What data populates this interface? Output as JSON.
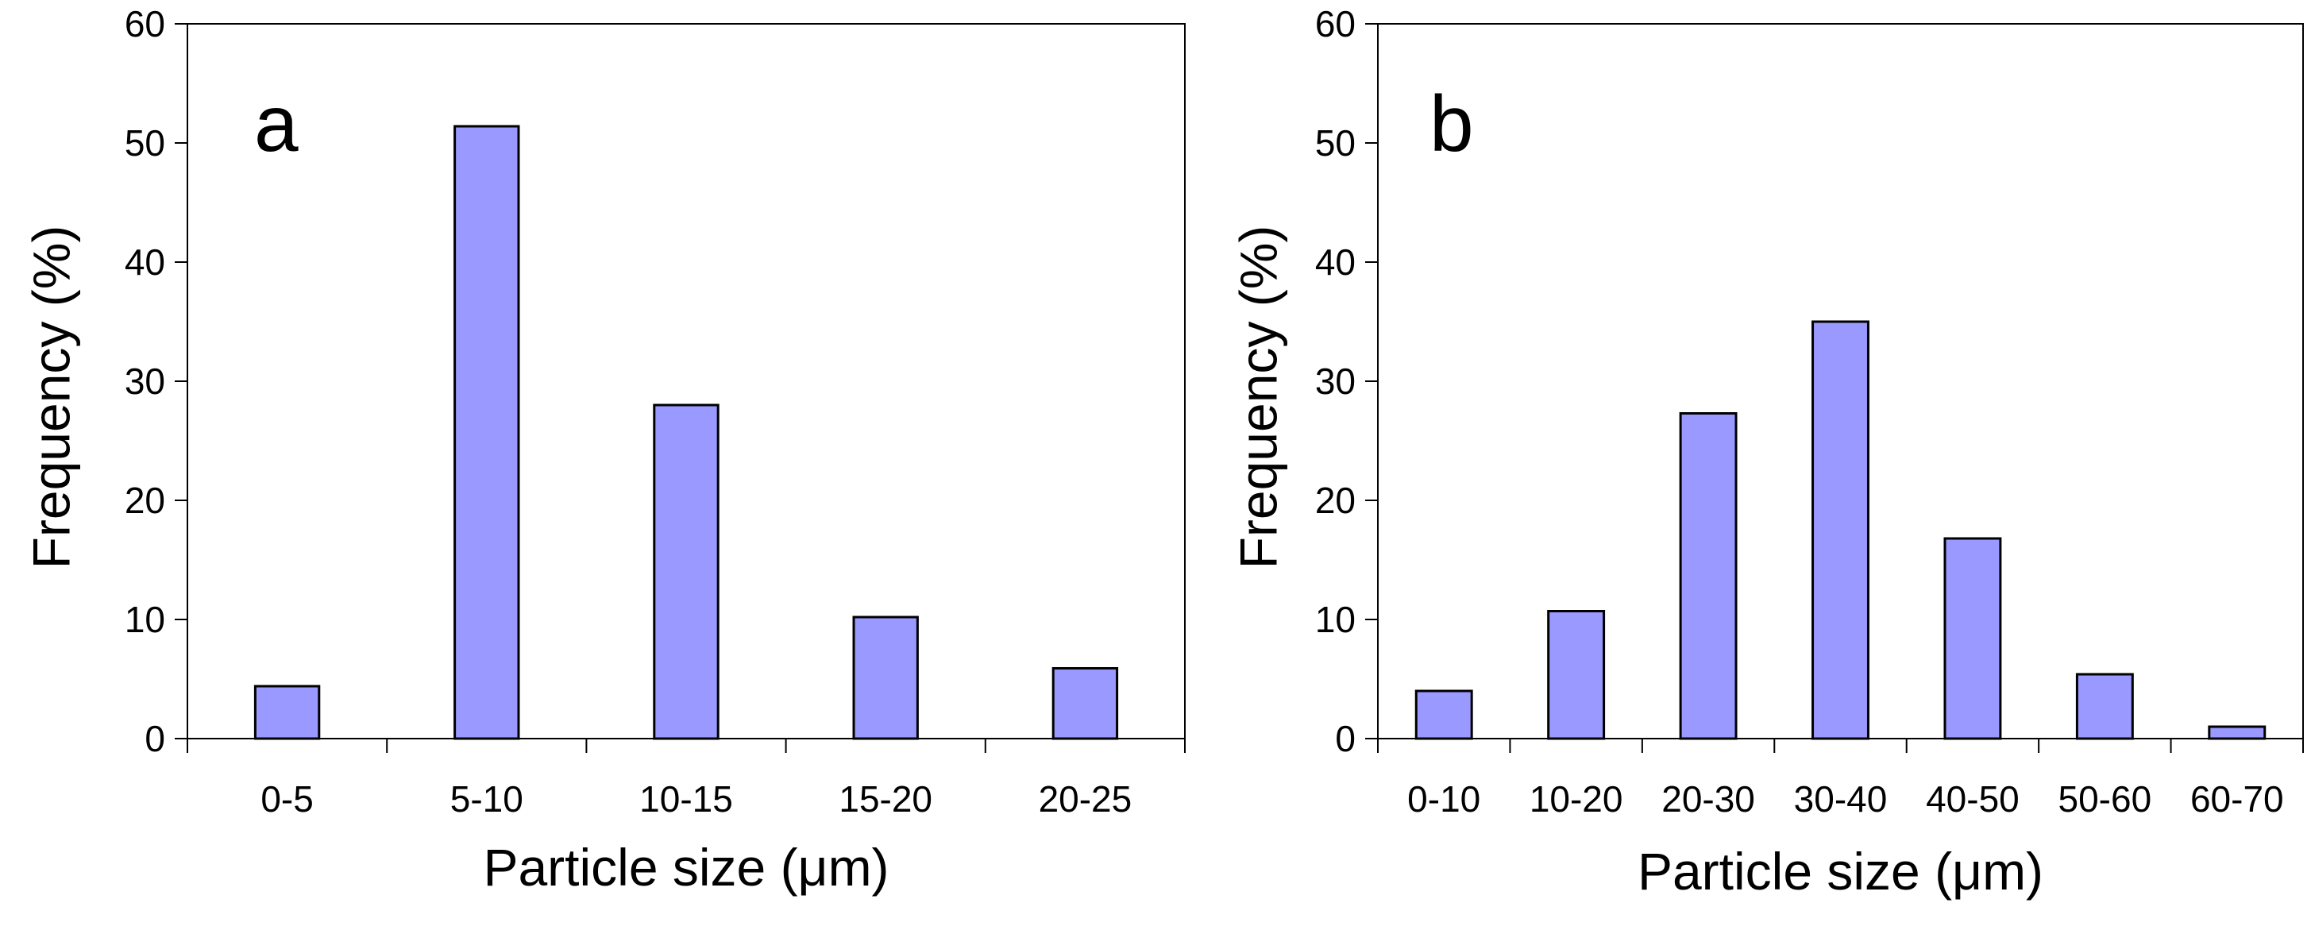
{
  "chart_data": [
    {
      "type": "bar",
      "panel_label": "a",
      "categories": [
        "0-5",
        "5-10",
        "10-15",
        "15-20",
        "20-25"
      ],
      "values": [
        4.4,
        51.4,
        28.0,
        10.2,
        5.9
      ],
      "title": "",
      "xlabel": "Particle size (μm)",
      "ylabel": "Frequency (%)",
      "ylim": [
        0,
        60
      ],
      "yticks": [
        0,
        10,
        20,
        30,
        40,
        50,
        60
      ],
      "bar_color": "#9999ff",
      "grid": false
    },
    {
      "type": "bar",
      "panel_label": "b",
      "categories": [
        "0-10",
        "10-20",
        "20-30",
        "30-40",
        "40-50",
        "50-60",
        "60-70"
      ],
      "values": [
        4.0,
        10.7,
        27.3,
        35.0,
        16.8,
        5.4,
        1.0
      ],
      "title": "",
      "xlabel": "Particle size (μm)",
      "ylabel": "Frequency (%)",
      "ylim": [
        0,
        60
      ],
      "yticks": [
        0,
        10,
        20,
        30,
        40,
        50,
        60
      ],
      "bar_color": "#9999ff",
      "grid": false
    }
  ]
}
